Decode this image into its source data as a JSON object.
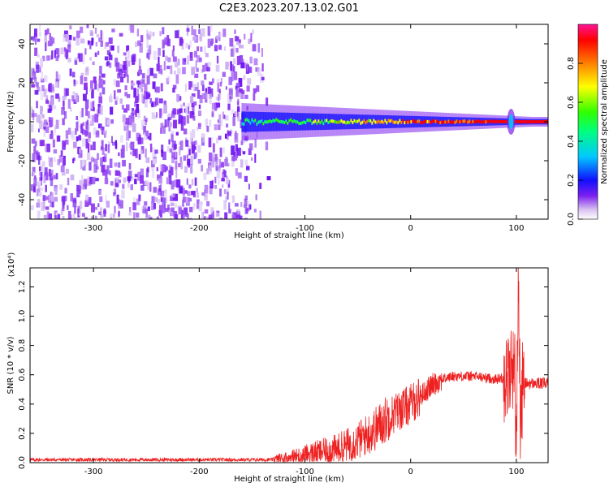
{
  "title": "C2E3.2023.207.13.02.G01",
  "chart_data": [
    {
      "type": "heatmap",
      "xlabel": "Height of straight line (km)",
      "ylabel": "Frequency (Hz)",
      "xlim": [
        -360,
        130
      ],
      "ylim": [
        -50,
        50
      ],
      "xticks": [
        -300,
        -200,
        -100,
        0,
        100
      ],
      "yticks": [
        -40,
        -20,
        0,
        20,
        40
      ],
      "colorbar": {
        "label": "Normalized spectral amplitude",
        "range": [
          0.0,
          1.0
        ],
        "ticks": [
          "0.0",
          "0.2",
          "0.4",
          "0.6",
          "0.8"
        ],
        "colormap": [
          "#ffffff",
          "#d8c0f0",
          "#7b1ff0",
          "#1010ff",
          "#00c8ff",
          "#00ff80",
          "#30ff00",
          "#ffff00",
          "#ff8000",
          "#ff0000",
          "#ff1493"
        ]
      },
      "noise_region_km": [
        -360,
        -125
      ],
      "signal_band": {
        "start_km": -160,
        "center_hz": 0,
        "peak_near_km": 95
      },
      "grid": false
    },
    {
      "type": "line",
      "xlabel": "Height of straight line (km)",
      "ylabel": "SNR (10 * v/v)",
      "scale_label": "(x10⁴)",
      "xlim": [
        -360,
        130
      ],
      "ylim": [
        0,
        1.33
      ],
      "xticks": [
        -300,
        -200,
        -100,
        0,
        100
      ],
      "yticks": [
        "0.0",
        "0.2",
        "0.4",
        "0.6",
        "0.8",
        "1.0",
        "1.2"
      ],
      "color": "#ee2020",
      "grid": false,
      "x": [
        -360,
        -300,
        -200,
        -130,
        -110,
        -90,
        -70,
        -50,
        -35,
        -20,
        -10,
        0,
        10,
        20,
        30,
        40,
        60,
        80,
        90,
        95,
        98,
        100,
        102,
        104,
        106,
        110,
        130
      ],
      "y": [
        0.02,
        0.02,
        0.02,
        0.02,
        0.04,
        0.07,
        0.09,
        0.15,
        0.22,
        0.32,
        0.36,
        0.4,
        0.46,
        0.53,
        0.57,
        0.59,
        0.59,
        0.57,
        0.58,
        0.62,
        0.75,
        0.1,
        1.3,
        0.2,
        0.55,
        0.54,
        0.54
      ]
    }
  ]
}
